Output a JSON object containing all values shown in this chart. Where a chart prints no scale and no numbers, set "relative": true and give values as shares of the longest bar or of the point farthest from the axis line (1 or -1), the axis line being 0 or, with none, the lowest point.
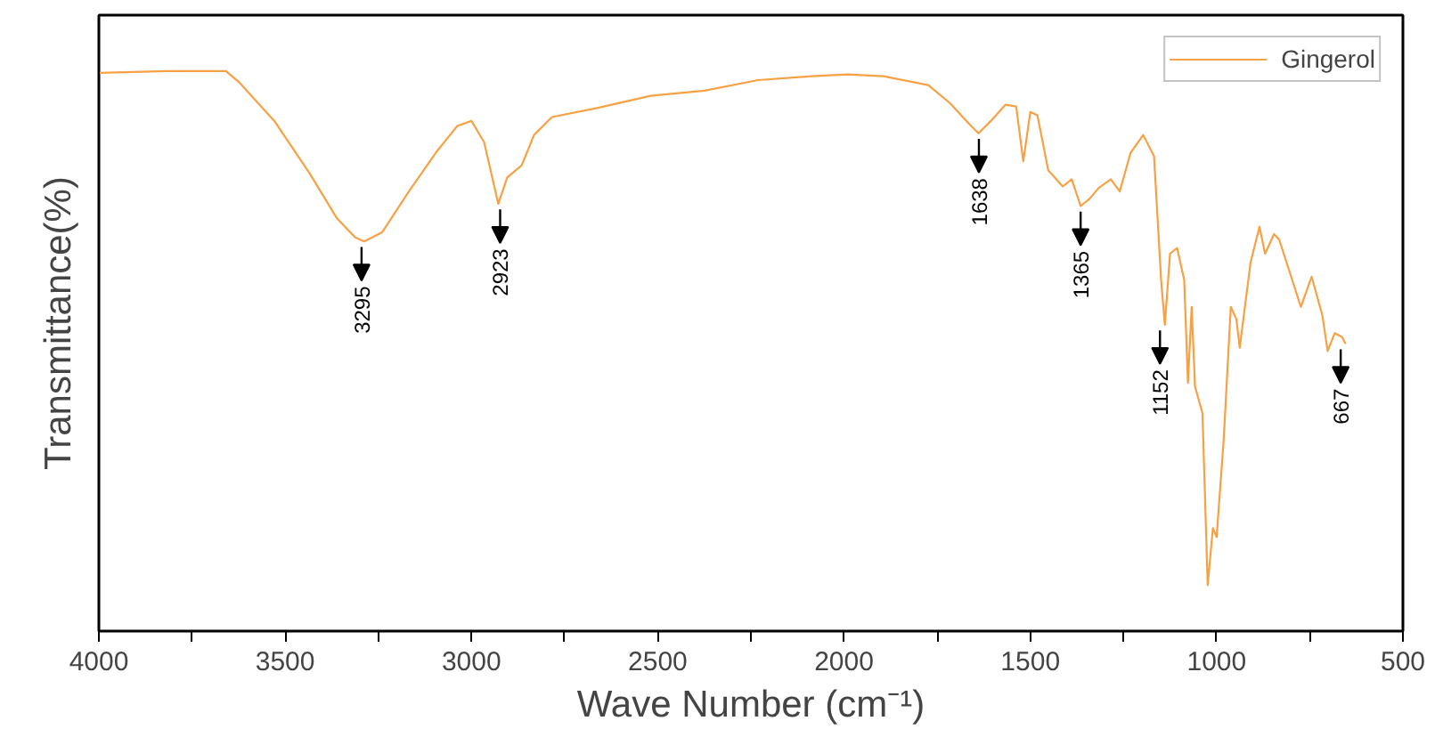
{
  "chart_data": {
    "type": "line",
    "relative": true,
    "xlabel": "Wave Number (cm⁻¹)",
    "ylabel": "Transmittance(%)",
    "xlim": [
      4000,
      500
    ],
    "xticks": [
      4000,
      {
        "value": 3750,
        "label": null
      },
      3500,
      {
        "value": 3250,
        "label": null
      },
      3000,
      {
        "value": 2750,
        "label": null
      },
      2500,
      {
        "value": 2250,
        "label": null
      },
      2000,
      {
        "value": 1750,
        "label": null
      },
      1500,
      {
        "value": 1250,
        "label": null
      },
      1000,
      {
        "value": 750,
        "label": null
      },
      500
    ],
    "x": [
      4000,
      3817,
      3659,
      3625,
      3529,
      3433,
      3361,
      3312,
      3288,
      3240,
      3168,
      3096,
      3038,
      3000,
      2966,
      2928,
      2904,
      2865,
      2832,
      2784,
      2663,
      2519,
      2375,
      2231,
      2087,
      1990,
      1894,
      1774,
      1716,
      1663,
      1639,
      1606,
      1567,
      1538,
      1519,
      1500,
      1481,
      1452,
      1413,
      1389,
      1365,
      1341,
      1317,
      1284,
      1260,
      1231,
      1197,
      1168,
      1149,
      1139,
      1125,
      1106,
      1087,
      1077,
      1067,
      1058,
      1038,
      1024,
      1010,
      1000,
      981,
      962,
      947,
      938,
      909,
      885,
      870,
      846,
      832,
      774,
      745,
      716,
      702,
      683,
      663,
      654
    ],
    "series": [
      {
        "name": "Gingerol",
        "color": "#f7a145",
        "values": [
          0.997,
          1.0,
          1.0,
          0.981,
          0.911,
          0.816,
          0.737,
          0.703,
          0.696,
          0.712,
          0.785,
          0.854,
          0.902,
          0.911,
          0.873,
          0.763,
          0.81,
          0.832,
          0.886,
          0.918,
          0.934,
          0.956,
          0.965,
          0.984,
          0.991,
          0.994,
          0.991,
          0.975,
          0.943,
          0.905,
          0.889,
          0.911,
          0.94,
          0.937,
          0.839,
          0.927,
          0.921,
          0.823,
          0.794,
          0.807,
          0.759,
          0.772,
          0.791,
          0.807,
          0.785,
          0.854,
          0.886,
          0.848,
          0.627,
          0.547,
          0.674,
          0.684,
          0.627,
          0.443,
          0.579,
          0.437,
          0.389,
          0.082,
          0.184,
          0.168,
          0.342,
          0.579,
          0.557,
          0.506,
          0.658,
          0.722,
          0.674,
          0.709,
          0.699,
          0.579,
          0.633,
          0.563,
          0.5,
          0.532,
          0.525,
          0.513
        ]
      }
    ],
    "annotations": [
      {
        "text": "3295",
        "x": 3295,
        "y": 0.696
      },
      {
        "text": "2923",
        "x": 2923,
        "y": 0.763
      },
      {
        "text": "1638",
        "x": 1638,
        "y": 0.889
      },
      {
        "text": "1365",
        "x": 1365,
        "y": 0.759
      },
      {
        "text": "1152",
        "x": 1152,
        "y": 0.547
      },
      {
        "text": "667",
        "x": 667,
        "y": 0.513
      }
    ],
    "legend": "top right",
    "grid": false
  }
}
